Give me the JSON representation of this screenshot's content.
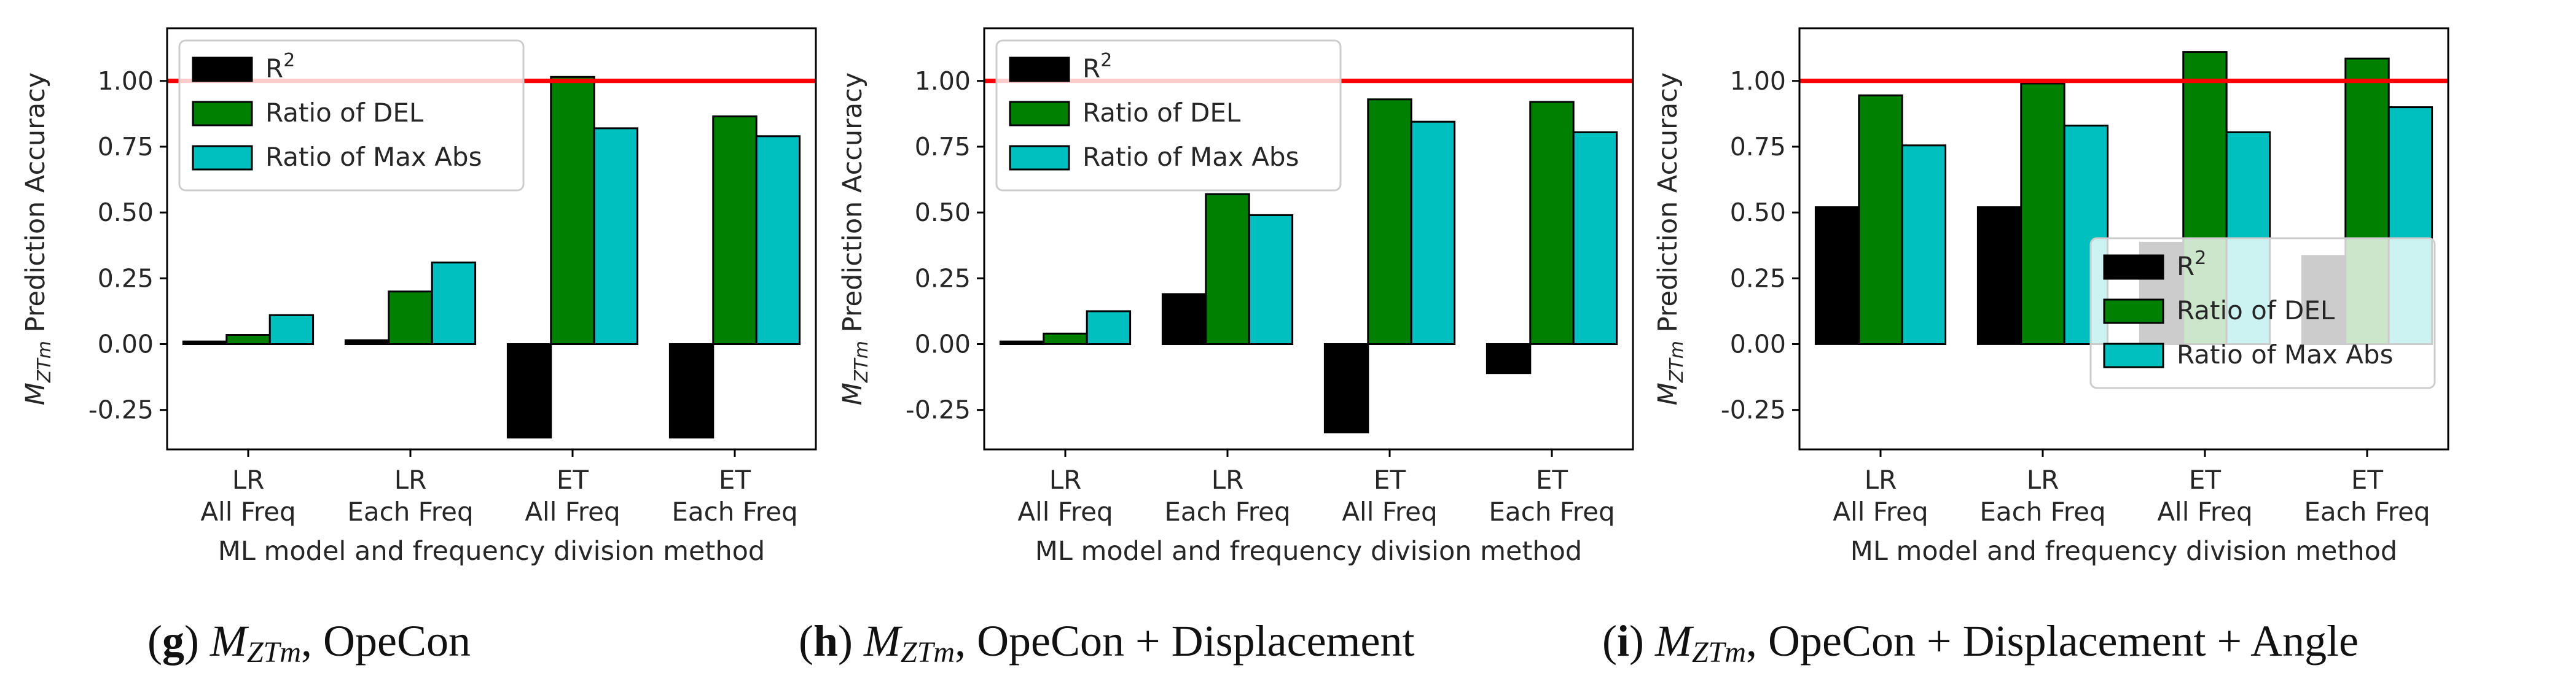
{
  "colors": {
    "r2": "#000000",
    "del": "#008000",
    "maxabs": "#00bfbf",
    "reference": "#ff0000"
  },
  "chart_data": [
    {
      "type": "bar",
      "panel": "g",
      "caption": {
        "letter": "g",
        "symbol": "M",
        "subscript": "ZTm",
        "text": ", OpeCon"
      },
      "ylabel": {
        "symbol": "M",
        "subscript": "ZTm",
        "text": " Prediction Accuracy"
      },
      "xlabel": "ML model and frequency division method",
      "categories": [
        [
          "LR",
          "All Freq"
        ],
        [
          "LR",
          "Each Freq"
        ],
        [
          "ET",
          "All Freq"
        ],
        [
          "ET",
          "Each Freq"
        ]
      ],
      "series": [
        {
          "name": "R²",
          "base": "R",
          "sup": "2",
          "key": "r2",
          "values": [
            0.01,
            0.015,
            -0.355,
            -0.355
          ]
        },
        {
          "name": "Ratio of DEL",
          "key": "del",
          "values": [
            0.035,
            0.2,
            1.015,
            0.865
          ]
        },
        {
          "name": "Ratio of Max Abs",
          "key": "maxabs",
          "values": [
            0.11,
            0.31,
            0.82,
            0.79
          ]
        }
      ],
      "reference_line": 1.0,
      "ylim": [
        -0.4,
        1.2
      ],
      "yticks": [
        "-0.25",
        "0.00",
        "0.25",
        "0.50",
        "0.75",
        "1.00"
      ],
      "legend_loc": "upper left"
    },
    {
      "type": "bar",
      "panel": "h",
      "caption": {
        "letter": "h",
        "symbol": "M",
        "subscript": "ZTm",
        "text": ", OpeCon + Displacement"
      },
      "ylabel": {
        "symbol": "M",
        "subscript": "ZTm",
        "text": " Prediction Accuracy"
      },
      "xlabel": "ML model and frequency division method",
      "categories": [
        [
          "LR",
          "All Freq"
        ],
        [
          "LR",
          "Each Freq"
        ],
        [
          "ET",
          "All Freq"
        ],
        [
          "ET",
          "Each Freq"
        ]
      ],
      "series": [
        {
          "name": "R²",
          "base": "R",
          "sup": "2",
          "key": "r2",
          "values": [
            0.01,
            0.19,
            -0.335,
            -0.11
          ]
        },
        {
          "name": "Ratio of DEL",
          "key": "del",
          "values": [
            0.04,
            0.57,
            0.93,
            0.92
          ]
        },
        {
          "name": "Ratio of Max Abs",
          "key": "maxabs",
          "values": [
            0.125,
            0.49,
            0.845,
            0.805
          ]
        }
      ],
      "reference_line": 1.0,
      "ylim": [
        -0.4,
        1.2
      ],
      "yticks": [
        "-0.25",
        "0.00",
        "0.25",
        "0.50",
        "0.75",
        "1.00"
      ],
      "legend_loc": "upper left"
    },
    {
      "type": "bar",
      "panel": "i",
      "caption": {
        "letter": "i",
        "symbol": "M",
        "subscript": "ZTm",
        "text": ", OpeCon + Displacement + Angle"
      },
      "ylabel": {
        "symbol": "M",
        "subscript": "ZTm",
        "text": " Prediction Accuracy"
      },
      "xlabel": "ML model and frequency division method",
      "categories": [
        [
          "LR",
          "All Freq"
        ],
        [
          "LR",
          "Each Freq"
        ],
        [
          "ET",
          "All Freq"
        ],
        [
          "ET",
          "Each Freq"
        ]
      ],
      "series": [
        {
          "name": "R²",
          "base": "R",
          "sup": "2",
          "key": "r2",
          "values": [
            0.52,
            0.52,
            0.385,
            0.335
          ]
        },
        {
          "name": "Ratio of DEL",
          "key": "del",
          "values": [
            0.945,
            0.99,
            1.11,
            1.085
          ]
        },
        {
          "name": "Ratio of Max Abs",
          "key": "maxabs",
          "values": [
            0.755,
            0.83,
            0.805,
            0.9
          ]
        }
      ],
      "reference_line": 1.0,
      "ylim": [
        -0.4,
        1.2
      ],
      "yticks": [
        "-0.25",
        "0.00",
        "0.25",
        "0.50",
        "0.75",
        "1.00"
      ],
      "legend_loc": "lower right"
    }
  ]
}
